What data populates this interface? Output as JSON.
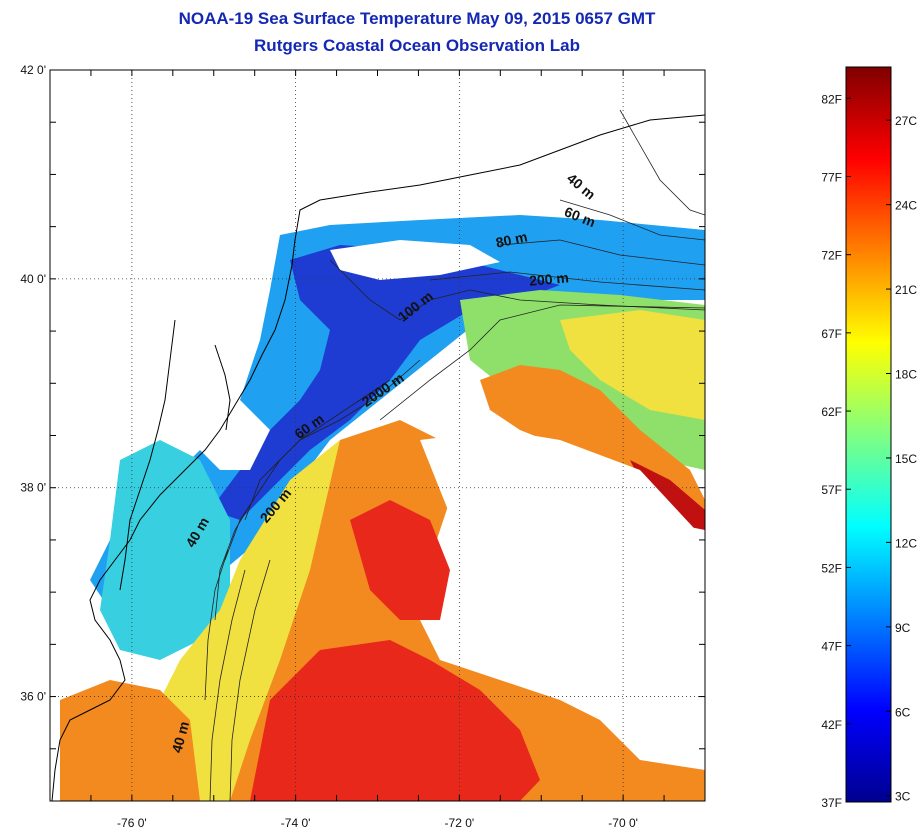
{
  "title": "NOAA-19 Sea Surface Temperature May 09, 2015 0657 GMT",
  "subtitle": "Rutgers Coastal Ocean Observation Lab",
  "map": {
    "lon_range": [
      -77.0,
      -69.0
    ],
    "lat_range": [
      35.0,
      42.0
    ],
    "grid": "dotted",
    "lon_ticks": [
      {
        "value": -76,
        "label": "-76 0'"
      },
      {
        "value": -74,
        "label": "-74 0'"
      },
      {
        "value": -72,
        "label": "-72 0'"
      },
      {
        "value": -70,
        "label": "-70 0'"
      }
    ],
    "lat_ticks": [
      {
        "value": 42,
        "label": "42 0'"
      },
      {
        "value": 40,
        "label": "40 0'"
      },
      {
        "value": 38,
        "label": "38 0'"
      },
      {
        "value": 36,
        "label": "36 0'"
      }
    ],
    "contour_labels": [
      {
        "text": "40 m",
        "lon": -70.55,
        "lat": 40.85,
        "angle": 40
      },
      {
        "text": "60 m",
        "lon": -70.55,
        "lat": 40.55,
        "angle": 22
      },
      {
        "text": "80 m",
        "lon": -71.35,
        "lat": 40.33,
        "angle": -12
      },
      {
        "text": "200 m",
        "lon": -70.9,
        "lat": 39.95,
        "angle": -5
      },
      {
        "text": "100 m",
        "lon": -72.5,
        "lat": 39.7,
        "angle": -38
      },
      {
        "text": "2000 m",
        "lon": -72.9,
        "lat": 38.9,
        "angle": -35
      },
      {
        "text": "60 m",
        "lon": -73.8,
        "lat": 38.55,
        "angle": -35
      },
      {
        "text": "200 m",
        "lon": -74.2,
        "lat": 37.8,
        "angle": -50
      },
      {
        "text": "40 m",
        "lon": -75.15,
        "lat": 37.55,
        "angle": -60
      },
      {
        "text": "40 m",
        "lon": -75.35,
        "lat": 35.6,
        "angle": -75
      }
    ]
  },
  "colorbar": {
    "fahrenheit_labels": [
      "82F",
      "77F",
      "72F",
      "67F",
      "62F",
      "57F",
      "52F",
      "47F",
      "42F",
      "37F"
    ],
    "celsius_labels": [
      "27C",
      "24C",
      "21C",
      "18C",
      "15C",
      "12C",
      "9C",
      "6C",
      "3C"
    ],
    "range_f": [
      37,
      84
    ],
    "colormap": "jet",
    "colors": [
      "#00008f",
      "#0000ff",
      "#0080ff",
      "#00ffff",
      "#80ff80",
      "#ffff00",
      "#ff8000",
      "#ff0000",
      "#800000"
    ]
  },
  "sst_colors": {
    "cold_shelf": "#1e3cd2",
    "cool": "#1fa0f0",
    "cyan": "#38d0e0",
    "greenish": "#8ee06a",
    "yellow": "#f0e040",
    "orange": "#f28a20",
    "red": "#e8281a",
    "darkred": "#c01010",
    "cloud": "#ffffff"
  }
}
